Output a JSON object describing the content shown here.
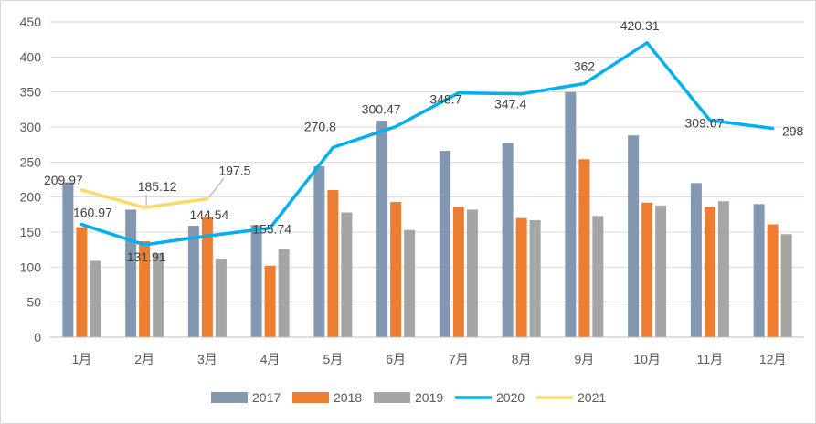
{
  "chart_data": {
    "type": "bar",
    "title": "",
    "xlabel": "",
    "ylabel": "",
    "categories": [
      "1月",
      "2月",
      "3月",
      "4月",
      "5月",
      "6月",
      "7月",
      "8月",
      "9月",
      "10月",
      "11月",
      "12月"
    ],
    "ylim": [
      0,
      450
    ],
    "yticks": [
      0,
      50,
      100,
      150,
      200,
      250,
      300,
      350,
      400,
      450
    ],
    "grid": true,
    "legend_position": "bottom",
    "bar_series": [
      {
        "name": "2017",
        "color": "#8497b0",
        "values": [
          221,
          182,
          159,
          160,
          244,
          309,
          266,
          277,
          350,
          288,
          220,
          190
        ]
      },
      {
        "name": "2018",
        "color": "#ed7d31",
        "values": [
          157,
          137,
          172,
          102,
          210,
          193,
          186,
          170,
          254,
          192,
          186,
          161
        ]
      },
      {
        "name": "2019",
        "color": "#a5a5a5",
        "values": [
          109,
          120,
          112,
          126,
          178,
          153,
          182,
          167,
          173,
          188,
          194,
          147
        ]
      }
    ],
    "line_series": [
      {
        "name": "2020",
        "color": "#00b0f0",
        "values": [
          160.97,
          131.91,
          144.54,
          155.74,
          270.8,
          300.47,
          348.7,
          347.4,
          362,
          420.31,
          309.67,
          298
        ],
        "labels": [
          "160.97",
          "131.91",
          "144.54",
          "155.74",
          "270.8",
          "300.47",
          "348.7",
          "347.4",
          "362",
          "420.31",
          "309.67",
          "298"
        ]
      },
      {
        "name": "2021",
        "color": "#ffd966",
        "values": [
          209.97,
          185.12,
          197.5
        ],
        "labels": [
          "209.97",
          "185.12",
          "197.5"
        ]
      }
    ]
  }
}
